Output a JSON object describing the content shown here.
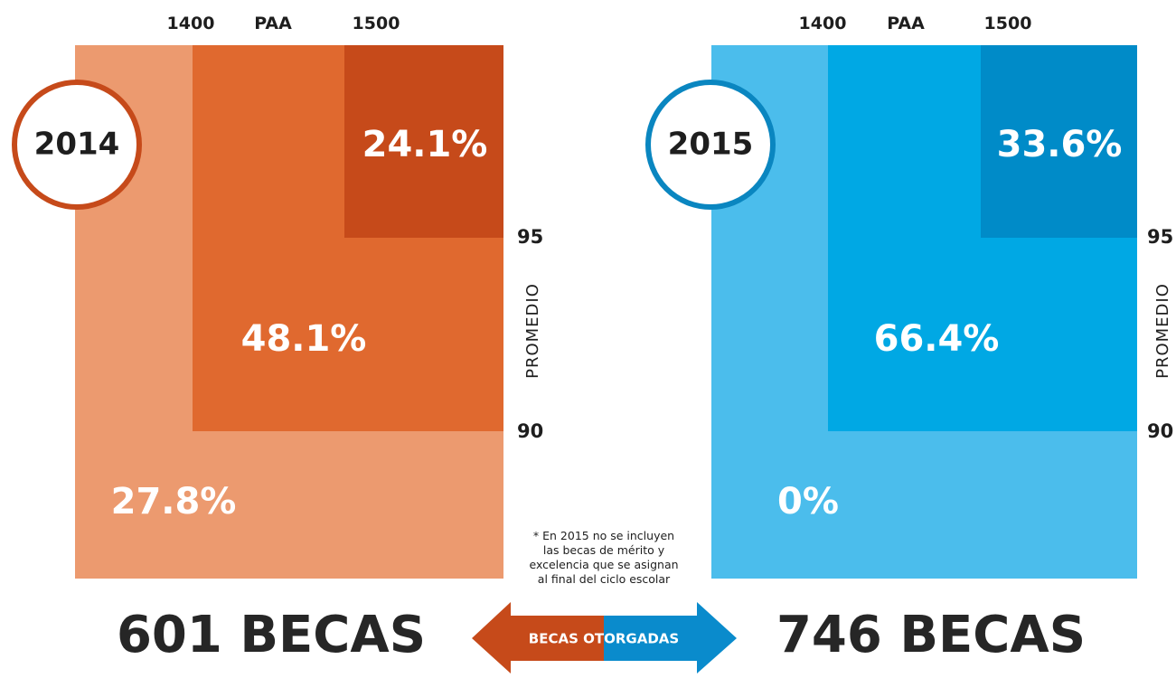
{
  "panels": [
    {
      "year": "2014",
      "col_labels": [
        "1400",
        "PAA",
        "1500"
      ],
      "top": "24.1%",
      "mid": "48.1%",
      "bottom": "27.8%",
      "axis_high": "95",
      "axis_low": "90",
      "axis_title": "PROMEDIO",
      "total": "601 BECAS"
    },
    {
      "year": "2015",
      "col_labels": [
        "1400",
        "PAA",
        "1500"
      ],
      "top": "33.6%",
      "mid": "66.4%",
      "bottom": "0%",
      "axis_high": "95",
      "axis_low": "90",
      "axis_title": "PROMEDIO",
      "total": "746 BECAS"
    }
  ],
  "note": [
    "* En 2015 no se incluyen",
    "las becas de mérito y",
    "excelencia que se asignan",
    "al final del ciclo escolar"
  ],
  "arrow_label": "BECAS OTORGADAS"
}
